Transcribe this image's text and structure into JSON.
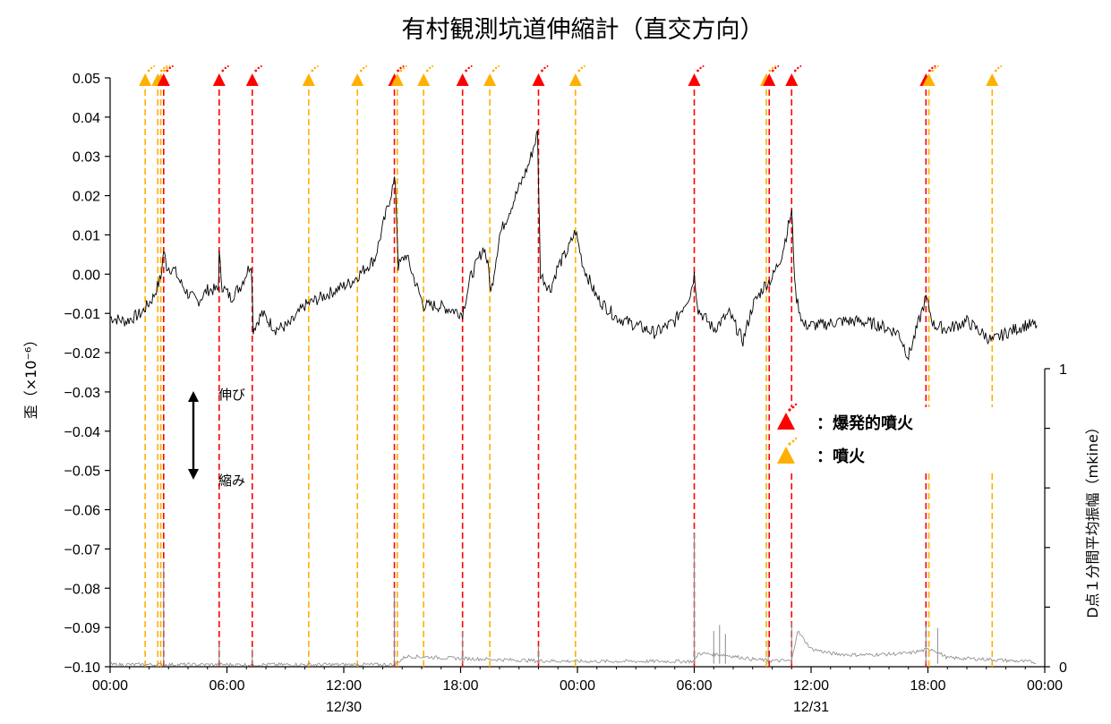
{
  "chart_data": {
    "type": "line",
    "title": "有村観測坑道伸縮計（直交方向）",
    "ylabel_left": "歪（×10⁻⁶）",
    "ylabel_right": "D点１分間平均振幅（mkine）",
    "ylim_left": [
      -0.1,
      0.05
    ],
    "ylim_right": [
      0,
      1
    ],
    "y_ticks_left": [
      "0.05",
      "0.04",
      "0.03",
      "0.02",
      "0.01",
      "0.00",
      "−0.01",
      "−0.02",
      "−0.03",
      "−0.04",
      "−0.05",
      "−0.06",
      "−0.07",
      "−0.08",
      "−0.09",
      "−0.10"
    ],
    "y_ticks_right": [
      "1",
      "0"
    ],
    "x_ticks": [
      {
        "time": "00:00",
        "date": ""
      },
      {
        "time": "06:00",
        "date": ""
      },
      {
        "time": "12:00",
        "date": "12/30"
      },
      {
        "time": "18:00",
        "date": ""
      },
      {
        "time": "00:00",
        "date": ""
      },
      {
        "time": "06:00",
        "date": ""
      },
      {
        "time": "12:00",
        "date": "12/31"
      },
      {
        "time": "18:00",
        "date": ""
      },
      {
        "time": "00:00",
        "date": ""
      }
    ],
    "xlim_hours": [
      0,
      48
    ],
    "annotations": {
      "extension": "伸び",
      "contraction": "縮み"
    },
    "legend": {
      "explosive_label": "：爆発的噴火",
      "eruption_label": "：噴火",
      "placement": "right-middle"
    },
    "events": [
      {
        "hour": 1.8,
        "type": "eruption"
      },
      {
        "hour": 2.45,
        "type": "eruption"
      },
      {
        "hour": 2.6,
        "type": "eruption"
      },
      {
        "hour": 2.75,
        "type": "explosive"
      },
      {
        "hour": 5.6,
        "type": "explosive"
      },
      {
        "hour": 7.3,
        "type": "explosive"
      },
      {
        "hour": 10.2,
        "type": "eruption"
      },
      {
        "hour": 12.7,
        "type": "eruption"
      },
      {
        "hour": 14.6,
        "type": "explosive"
      },
      {
        "hour": 14.75,
        "type": "eruption"
      },
      {
        "hour": 16.1,
        "type": "eruption"
      },
      {
        "hour": 18.1,
        "type": "explosive"
      },
      {
        "hour": 19.5,
        "type": "eruption"
      },
      {
        "hour": 22.0,
        "type": "explosive"
      },
      {
        "hour": 23.9,
        "type": "eruption"
      },
      {
        "hour": 30.0,
        "type": "explosive"
      },
      {
        "hour": 33.7,
        "type": "eruption"
      },
      {
        "hour": 33.85,
        "type": "explosive"
      },
      {
        "hour": 35.0,
        "type": "explosive"
      },
      {
        "hour": 41.9,
        "type": "explosive"
      },
      {
        "hour": 42.05,
        "type": "eruption"
      },
      {
        "hour": 45.3,
        "type": "eruption"
      }
    ],
    "series": [
      {
        "kind": "strain",
        "color": "#000000",
        "points": [
          [
            0,
            -0.011
          ],
          [
            0.8,
            -0.012
          ],
          [
            1.6,
            -0.01
          ],
          [
            2.2,
            -0.006
          ],
          [
            2.6,
            -0.001
          ],
          [
            2.75,
            0.006
          ],
          [
            2.9,
            0.002
          ],
          [
            3.3,
            0.001
          ],
          [
            3.6,
            -0.002
          ],
          [
            4.0,
            -0.005
          ],
          [
            4.5,
            -0.007
          ],
          [
            5.0,
            -0.004
          ],
          [
            5.55,
            -0.004
          ],
          [
            5.6,
            0.005
          ],
          [
            5.75,
            -0.003
          ],
          [
            6.2,
            -0.006
          ],
          [
            6.7,
            -0.003
          ],
          [
            7.25,
            0.003
          ],
          [
            7.35,
            -0.014
          ],
          [
            7.8,
            -0.01
          ],
          [
            8.5,
            -0.014
          ],
          [
            9.2,
            -0.013
          ],
          [
            10.0,
            -0.008
          ],
          [
            10.8,
            -0.006
          ],
          [
            11.6,
            -0.004
          ],
          [
            12.4,
            -0.002
          ],
          [
            13.0,
            0.001
          ],
          [
            13.6,
            0.004
          ],
          [
            14.0,
            0.012
          ],
          [
            14.5,
            0.022
          ],
          [
            14.65,
            0.024
          ],
          [
            14.8,
            0.002
          ],
          [
            15.2,
            0.005
          ],
          [
            15.6,
            -0.001
          ],
          [
            16.1,
            -0.008
          ],
          [
            16.8,
            -0.008
          ],
          [
            17.5,
            -0.009
          ],
          [
            18.1,
            -0.01
          ],
          [
            18.5,
            -0.001
          ],
          [
            19.2,
            0.007
          ],
          [
            19.45,
            0.001
          ],
          [
            19.55,
            -0.005
          ],
          [
            20.0,
            0.01
          ],
          [
            20.5,
            0.016
          ],
          [
            21.0,
            0.022
          ],
          [
            21.5,
            0.028
          ],
          [
            21.95,
            0.036
          ],
          [
            22.1,
            0.0
          ],
          [
            22.6,
            -0.004
          ],
          [
            23.0,
            0.002
          ],
          [
            23.5,
            0.006
          ],
          [
            23.9,
            0.011
          ],
          [
            24.3,
            0.002
          ],
          [
            25.0,
            -0.006
          ],
          [
            26.0,
            -0.011
          ],
          [
            27.0,
            -0.013
          ],
          [
            28.0,
            -0.015
          ],
          [
            29.0,
            -0.012
          ],
          [
            29.8,
            -0.005
          ],
          [
            30.0,
            0.0
          ],
          [
            30.2,
            -0.009
          ],
          [
            31.0,
            -0.014
          ],
          [
            31.8,
            -0.01
          ],
          [
            32.5,
            -0.017
          ],
          [
            33.0,
            -0.008
          ],
          [
            33.6,
            -0.003
          ],
          [
            34.0,
            -0.001
          ],
          [
            34.5,
            0.005
          ],
          [
            35.0,
            0.016
          ],
          [
            35.2,
            -0.005
          ],
          [
            35.6,
            -0.013
          ],
          [
            36.5,
            -0.013
          ],
          [
            37.5,
            -0.012
          ],
          [
            38.5,
            -0.012
          ],
          [
            39.5,
            -0.013
          ],
          [
            40.5,
            -0.015
          ],
          [
            41.0,
            -0.021
          ],
          [
            41.6,
            -0.011
          ],
          [
            41.9,
            -0.006
          ],
          [
            42.3,
            -0.013
          ],
          [
            43.0,
            -0.014
          ],
          [
            44.0,
            -0.012
          ],
          [
            45.3,
            -0.017
          ],
          [
            46.0,
            -0.015
          ],
          [
            47.0,
            -0.013
          ],
          [
            47.6,
            -0.013
          ]
        ]
      },
      {
        "kind": "amplitude",
        "color": "#888888",
        "baseline_segments": [
          [
            0,
            0.007
          ],
          [
            14.6,
            0.007
          ],
          [
            15.2,
            0.035
          ],
          [
            18.0,
            0.028
          ],
          [
            22.0,
            0.02
          ],
          [
            24.5,
            0.018
          ],
          [
            30.0,
            0.018
          ],
          [
            30.2,
            0.045
          ],
          [
            31.5,
            0.04
          ],
          [
            33.0,
            0.025
          ],
          [
            34.0,
            0.02
          ],
          [
            35.0,
            0.02
          ],
          [
            35.3,
            0.12
          ],
          [
            36.0,
            0.06
          ],
          [
            37.0,
            0.045
          ],
          [
            38.0,
            0.04
          ],
          [
            39.0,
            0.04
          ],
          [
            41.0,
            0.045
          ],
          [
            42.2,
            0.06
          ],
          [
            43.0,
            0.03
          ],
          [
            45.0,
            0.025
          ],
          [
            47.6,
            0.015
          ]
        ],
        "spikes": [
          [
            2.75,
            0.35
          ],
          [
            5.6,
            0.08
          ],
          [
            7.3,
            0.06
          ],
          [
            14.6,
            0.25
          ],
          [
            18.1,
            0.12
          ],
          [
            22.0,
            0.07
          ],
          [
            30.0,
            0.45
          ],
          [
            31.0,
            0.12
          ],
          [
            31.3,
            0.14
          ],
          [
            31.6,
            0.11
          ],
          [
            33.8,
            0.09
          ],
          [
            35.0,
            0.15
          ],
          [
            41.9,
            0.14
          ],
          [
            42.5,
            0.13
          ]
        ]
      }
    ]
  }
}
